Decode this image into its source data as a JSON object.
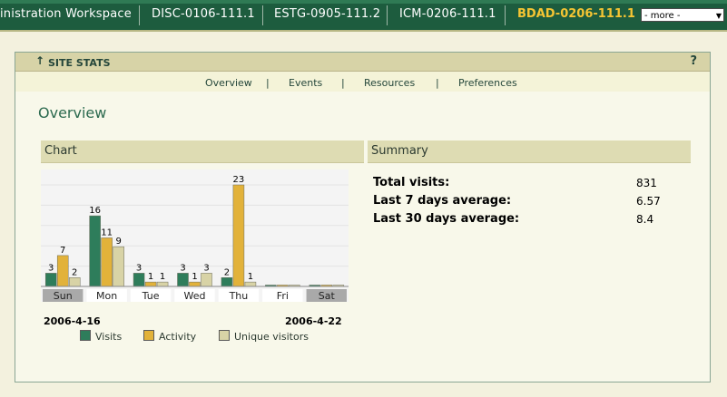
{
  "topbar": {
    "tabs": [
      {
        "label": "inistration Workspace"
      },
      {
        "label": "DISC-0106-111.1"
      },
      {
        "label": "ESTG-0905-111.2"
      },
      {
        "label": "ICM-0206-111.1"
      }
    ],
    "active_tab": "BDAD-0206-111.1",
    "more_select": "- more -"
  },
  "portlet": {
    "title": "SITE STATS",
    "help": "?"
  },
  "nav": {
    "links": [
      "Overview",
      "Events",
      "Resources",
      "Preferences"
    ],
    "separator": "|"
  },
  "page_title": "Overview",
  "chart_section": {
    "title": "Chart"
  },
  "summary_section": {
    "title": "Summary"
  },
  "chart_data": {
    "type": "bar",
    "categories": [
      "Sun",
      "Mon",
      "Tue",
      "Wed",
      "Thu",
      "Fri",
      "Sat"
    ],
    "series": [
      {
        "name": "Visits",
        "values": [
          3,
          16,
          3,
          3,
          2,
          0,
          0
        ],
        "color": "#2e7d5b"
      },
      {
        "name": "Activity",
        "values": [
          7,
          11,
          1,
          1,
          23,
          0,
          0
        ],
        "color": "#e2b23a"
      },
      {
        "name": "Unique visitors",
        "values": [
          2,
          9,
          1,
          3,
          1,
          0,
          0
        ],
        "color": "#d8d3a6"
      }
    ],
    "ylim": [
      0,
      23
    ],
    "highlighted_days": [
      "Sun",
      "Sat"
    ],
    "start_date": "2006-4-16",
    "end_date": "2006-4-22"
  },
  "summary": {
    "rows": [
      {
        "label": "Total visits:",
        "value": "831"
      },
      {
        "label": "Last 7 days average:",
        "value": "6.57"
      },
      {
        "label": "Last 30 days average:",
        "value": "8.4"
      }
    ]
  }
}
